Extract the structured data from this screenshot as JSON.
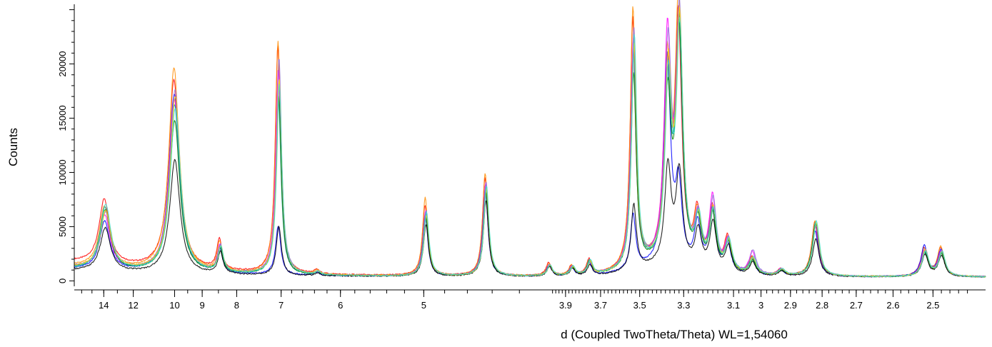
{
  "chart_data": {
    "type": "line",
    "xlabel": "d (Coupled TwoTheta/Theta) WL=1,54060",
    "ylabel": "Counts",
    "x_scale": "two-theta (labels show d-spacing)",
    "xlim_d": [
      16.8,
      2.38
    ],
    "ylim": [
      -500,
      25500
    ],
    "x_tick_labels": [
      "14",
      "12",
      "10",
      "9",
      "8",
      "7",
      "6",
      "5",
      "3.9",
      "3.7",
      "3.5",
      "3.3",
      "3.1",
      "3",
      "2.9",
      "2.8",
      "2.7",
      "2.6",
      "2.5"
    ],
    "x_tick_values": [
      14,
      12,
      10,
      9,
      8,
      7,
      6,
      5,
      3.9,
      3.7,
      3.5,
      3.3,
      3.1,
      3.0,
      2.9,
      2.8,
      2.7,
      2.6,
      2.5
    ],
    "y_tick_labels": [
      "0",
      "5000",
      "10000",
      "15000",
      "20000"
    ],
    "y_tick_values": [
      0,
      5000,
      10000,
      15000,
      20000
    ],
    "grid": false,
    "legend": "none",
    "peaks_d": [
      13.9,
      10.0,
      8.45,
      7.05,
      6.35,
      4.98,
      4.45,
      4.0,
      3.86,
      3.76,
      3.53,
      3.37,
      3.32,
      3.24,
      3.18,
      3.12,
      3.03,
      2.93,
      2.82,
      2.52,
      2.48
    ],
    "series": [
      {
        "color": "#ff0000",
        "peaks": [
          6000,
          17500,
          2800,
          21000,
          350,
          6500,
          9000,
          1200,
          900,
          1400,
          23000,
          17000,
          22000,
          4800,
          5600,
          3200,
          1600,
          600,
          5000,
          2600,
          2600
        ],
        "baseline": 1400
      },
      {
        "color": "#ff8c00",
        "peaks": [
          5600,
          18800,
          2600,
          21500,
          350,
          7200,
          9500,
          1100,
          900,
          1300,
          24000,
          18000,
          23500,
          4500,
          5300,
          3000,
          1500,
          600,
          5100,
          2500,
          2700
        ],
        "baseline": 1000
      },
      {
        "color": "#0000ff",
        "peaks": [
          4500,
          16500,
          2200,
          4500,
          300,
          5500,
          8000,
          1000,
          800,
          1100,
          5000,
          19000,
          7000,
          4000,
          5500,
          2600,
          1400,
          500,
          4200,
          2800,
          2400
        ],
        "baseline": 700
      },
      {
        "color": "#ff00ff",
        "peaks": [
          5000,
          16000,
          2400,
          19000,
          300,
          6000,
          8500,
          1000,
          800,
          1200,
          21000,
          20500,
          21000,
          4200,
          6600,
          2900,
          2100,
          600,
          4600,
          2400,
          2300
        ],
        "baseline": 800
      },
      {
        "color": "#00a0a0",
        "peaks": [
          5800,
          15500,
          2300,
          16000,
          300,
          5800,
          8200,
          1000,
          800,
          1300,
          20000,
          16000,
          21500,
          4200,
          5200,
          2800,
          1500,
          600,
          5000,
          2300,
          2200
        ],
        "baseline": 700
      },
      {
        "color": "#008000",
        "peaks": [
          5500,
          14000,
          2200,
          16500,
          300,
          5400,
          7800,
          900,
          700,
          1200,
          18000,
          15000,
          21000,
          4000,
          5000,
          2700,
          1300,
          500,
          4800,
          2200,
          2100
        ],
        "baseline": 800
      },
      {
        "color": "#000000",
        "peaks": [
          4000,
          10500,
          2000,
          4500,
          250,
          4800,
          7000,
          900,
          700,
          1000,
          6000,
          9000,
          8500,
          3500,
          4500,
          2500,
          1200,
          500,
          3500,
          2000,
          1900
        ],
        "baseline": 600
      },
      {
        "color": "#9370db",
        "peaks": [
          5200,
          16800,
          2400,
          20000,
          300,
          6000,
          8600,
          1000,
          800,
          1200,
          22000,
          19500,
          22500,
          4300,
          6300,
          2900,
          2200,
          600,
          4700,
          2500,
          2300
        ],
        "baseline": 900
      },
      {
        "color": "#ffd700",
        "peaks": [
          5300,
          16200,
          2300,
          18000,
          300,
          5600,
          8000,
          950,
          750,
          1150,
          20500,
          17500,
          21800,
          4100,
          5400,
          2800,
          1500,
          550,
          4900,
          2400,
          2250
        ],
        "baseline": 900
      },
      {
        "color": "#40e0d0",
        "peaks": [
          6000,
          15200,
          2300,
          17500,
          300,
          5900,
          8300,
          1000,
          800,
          1300,
          21500,
          16500,
          21000,
          4300,
          5300,
          2900,
          1600,
          600,
          5100,
          2300,
          2250
        ],
        "baseline": 750
      }
    ]
  }
}
